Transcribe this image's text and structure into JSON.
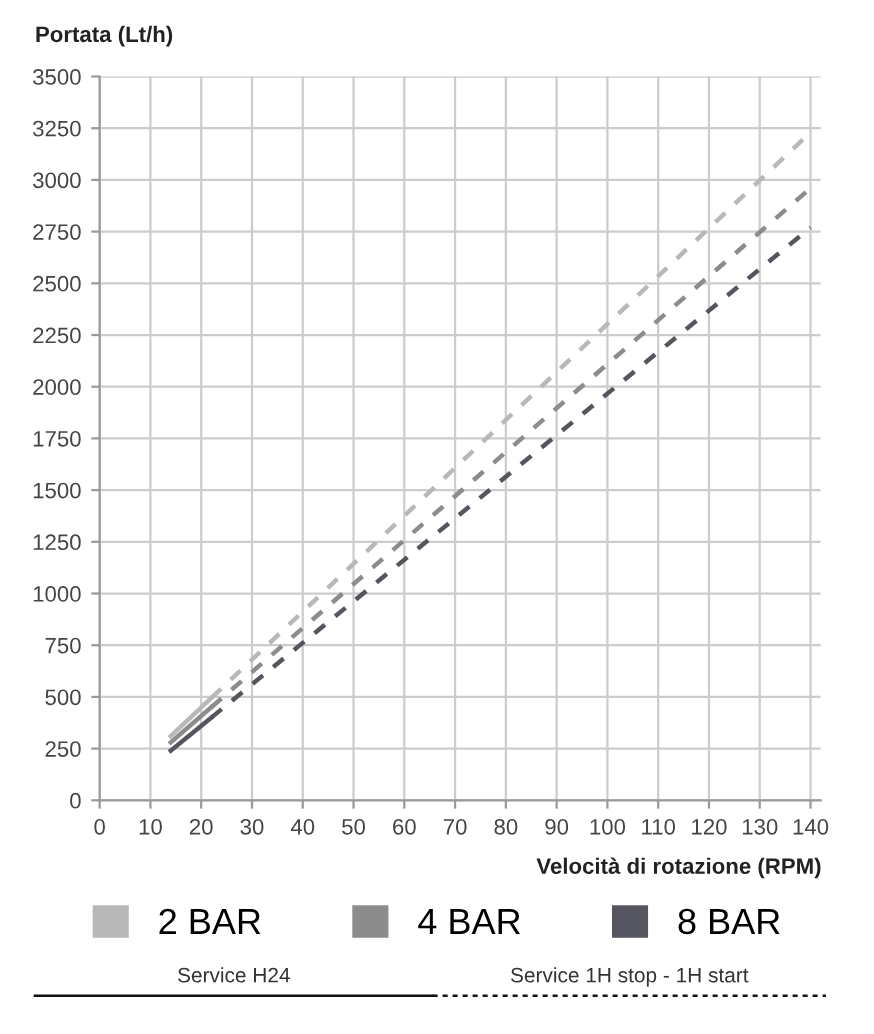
{
  "chart_data": {
    "type": "line",
    "ylabel": "Portata (Lt/h)",
    "xlabel": "Velocità di rotazione (RPM)",
    "xlim": [
      0,
      142
    ],
    "xticks": [
      0,
      10,
      20,
      30,
      40,
      50,
      60,
      70,
      80,
      90,
      100,
      110,
      120,
      130,
      140
    ],
    "ylim": [
      0,
      3500
    ],
    "yticks": [
      0,
      250,
      500,
      750,
      1000,
      1250,
      1500,
      1750,
      2000,
      2250,
      2500,
      2750,
      3000,
      3250,
      3500
    ],
    "grid": true,
    "legend": "bottom",
    "series": [
      {
        "name": "2 BAR",
        "color": "#b8b8b8",
        "x": [
          14,
          22
        ],
        "values": [
          310,
          495
        ],
        "line_style": "solid"
      },
      {
        "name": "4 BAR",
        "color": "#8c8c8c",
        "x": [
          14,
          22
        ],
        "values": [
          280,
          450
        ],
        "line_style": "solid"
      },
      {
        "name": "8 BAR",
        "color": "#555560",
        "x": [
          14,
          22
        ],
        "values": [
          240,
          400
        ],
        "line_style": "solid"
      },
      {
        "color": "#b8b8b8",
        "x": [
          22,
          140
        ],
        "values": [
          495,
          3230
        ],
        "line_style": "dashed"
      },
      {
        "color": "#8c8c8c",
        "x": [
          22,
          140
        ],
        "values": [
          450,
          2960
        ],
        "line_style": "dashed"
      },
      {
        "color": "#555560",
        "x": [
          22,
          140
        ],
        "values": [
          400,
          2770
        ],
        "line_style": "dashed"
      }
    ],
    "annotations": [
      "Service H24",
      "Service 1H stop - 1H start"
    ]
  }
}
